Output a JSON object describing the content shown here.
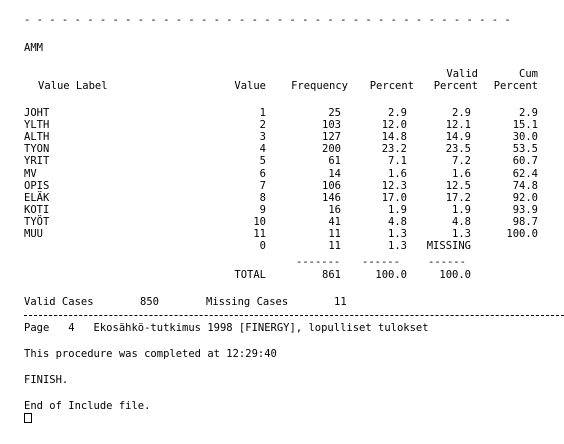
{
  "top_rule": "- - - - - - - - - - - - - - - - - - - - - - - - - - - - - - - - - - - - - - -",
  "variable": "AMM",
  "headers": {
    "value_label": "Value Label",
    "value": "Value",
    "frequency": "Frequency",
    "percent": "Percent",
    "valid_percent_1": "Valid",
    "valid_percent_2": "Percent",
    "cum_percent_1": "Cum",
    "cum_percent_2": "Percent"
  },
  "rows": [
    {
      "label": "JOHT",
      "value": "1",
      "freq": "25",
      "pct": "2.9",
      "valid": "2.9",
      "cum": "2.9"
    },
    {
      "label": "YLTH",
      "value": "2",
      "freq": "103",
      "pct": "12.0",
      "valid": "12.1",
      "cum": "15.1"
    },
    {
      "label": "ALTH",
      "value": "3",
      "freq": "127",
      "pct": "14.8",
      "valid": "14.9",
      "cum": "30.0"
    },
    {
      "label": "TYON",
      "value": "4",
      "freq": "200",
      "pct": "23.2",
      "valid": "23.5",
      "cum": "53.5"
    },
    {
      "label": "YRIT",
      "value": "5",
      "freq": "61",
      "pct": "7.1",
      "valid": "7.2",
      "cum": "60.7"
    },
    {
      "label": "MV",
      "value": "6",
      "freq": "14",
      "pct": "1.6",
      "valid": "1.6",
      "cum": "62.4"
    },
    {
      "label": "OPIS",
      "value": "7",
      "freq": "106",
      "pct": "12.3",
      "valid": "12.5",
      "cum": "74.8"
    },
    {
      "label": "ELÄK",
      "value": "8",
      "freq": "146",
      "pct": "17.0",
      "valid": "17.2",
      "cum": "92.0"
    },
    {
      "label": "KOTI",
      "value": "9",
      "freq": "16",
      "pct": "1.9",
      "valid": "1.9",
      "cum": "93.9"
    },
    {
      "label": "TYÖT",
      "value": "10",
      "freq": "41",
      "pct": "4.8",
      "valid": "4.8",
      "cum": "98.7"
    },
    {
      "label": "MUU",
      "value": "11",
      "freq": "11",
      "pct": "1.3",
      "valid": "1.3",
      "cum": "100.0"
    },
    {
      "label": "",
      "value": "0",
      "freq": "11",
      "pct": "1.3",
      "valid": "MISSING",
      "cum": ""
    }
  ],
  "total": {
    "label": "TOTAL",
    "freq": "861",
    "pct": "100.0",
    "valid": "100.0"
  },
  "valid_cases_label": "Valid Cases",
  "valid_cases": "850",
  "missing_cases_label": "Missing Cases",
  "missing_cases": "11",
  "page_line": "Page   4   Ekosähkö-tutkimus 1998 [FINERGY], lopulliset tulokset",
  "completed": "This procedure was completed at 12:29:40",
  "finish": "FINISH.",
  "end_include": "End of Include file."
}
